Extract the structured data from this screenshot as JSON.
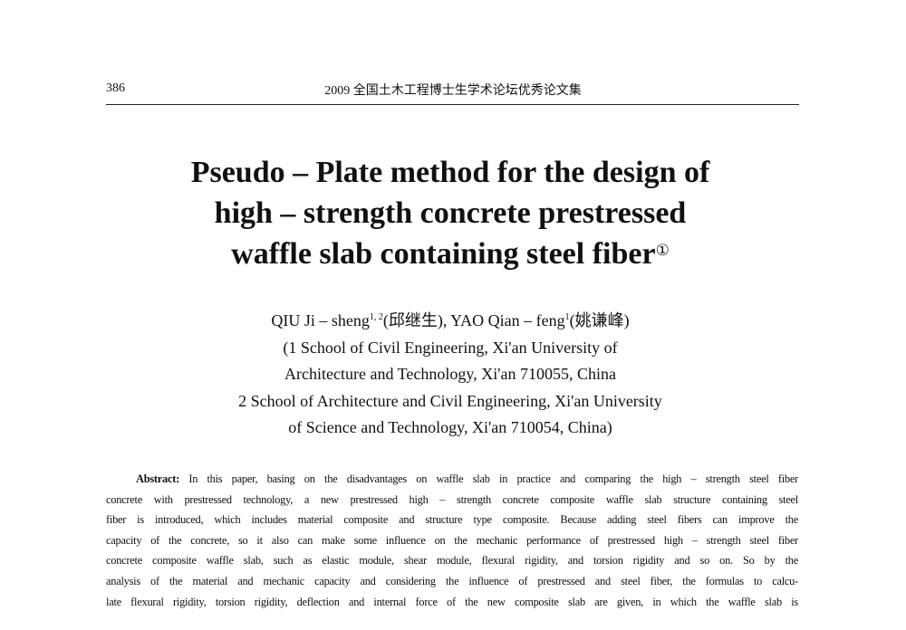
{
  "header": {
    "page_number": "386",
    "journal_title": "2009 全国土木工程博士生学术论坛优秀论文集"
  },
  "title": {
    "lines": [
      "Pseudo – Plate method for the design of",
      "high – strength concrete prestressed",
      "waffle slab containing steel fiber"
    ],
    "footnote_mark": "①"
  },
  "authors": {
    "author1_name": "QIU Ji – sheng",
    "author1_sup": "1, 2",
    "author1_cn": "(邱继生)",
    "separator": ",",
    "author2_name": "YAO Qian – feng",
    "author2_sup": "1",
    "author2_cn": "(姚谦峰)",
    "affiliations": [
      "(1 School of Civil Engineering, Xi'an University of",
      "Architecture and Technology, Xi'an 710055, China",
      "2 School of Architecture and Civil Engineering, Xi'an University",
      "of Science and Technology, Xi'an 710054, China)"
    ]
  },
  "abstract": {
    "label": "Abstract:",
    "lines": [
      "In this paper, basing on the disadvantages on waffle slab in practice and comparing the high – strength steel fiber",
      "concrete with prestressed technology, a new prestressed high – strength concrete composite waffle slab structure containing steel",
      "fiber is introduced, which includes material composite and structure type composite. Because adding steel fibers can improve the",
      "capacity of the concrete, so it also can make some influence on the mechanic performance of prestressed high – strength steel fiber",
      "concrete composite waffle slab, such as elastic module, shear module, flexural rigidity, and torsion rigidity and so on. So by the",
      "analysis of the material and mechanic capacity and considering the influence of prestressed and steel fiber, the formulas to calcu-",
      "late flexural rigidity, torsion rigidity, deflection and internal force of the new composite slab are given, in which the waffle slab is"
    ]
  }
}
